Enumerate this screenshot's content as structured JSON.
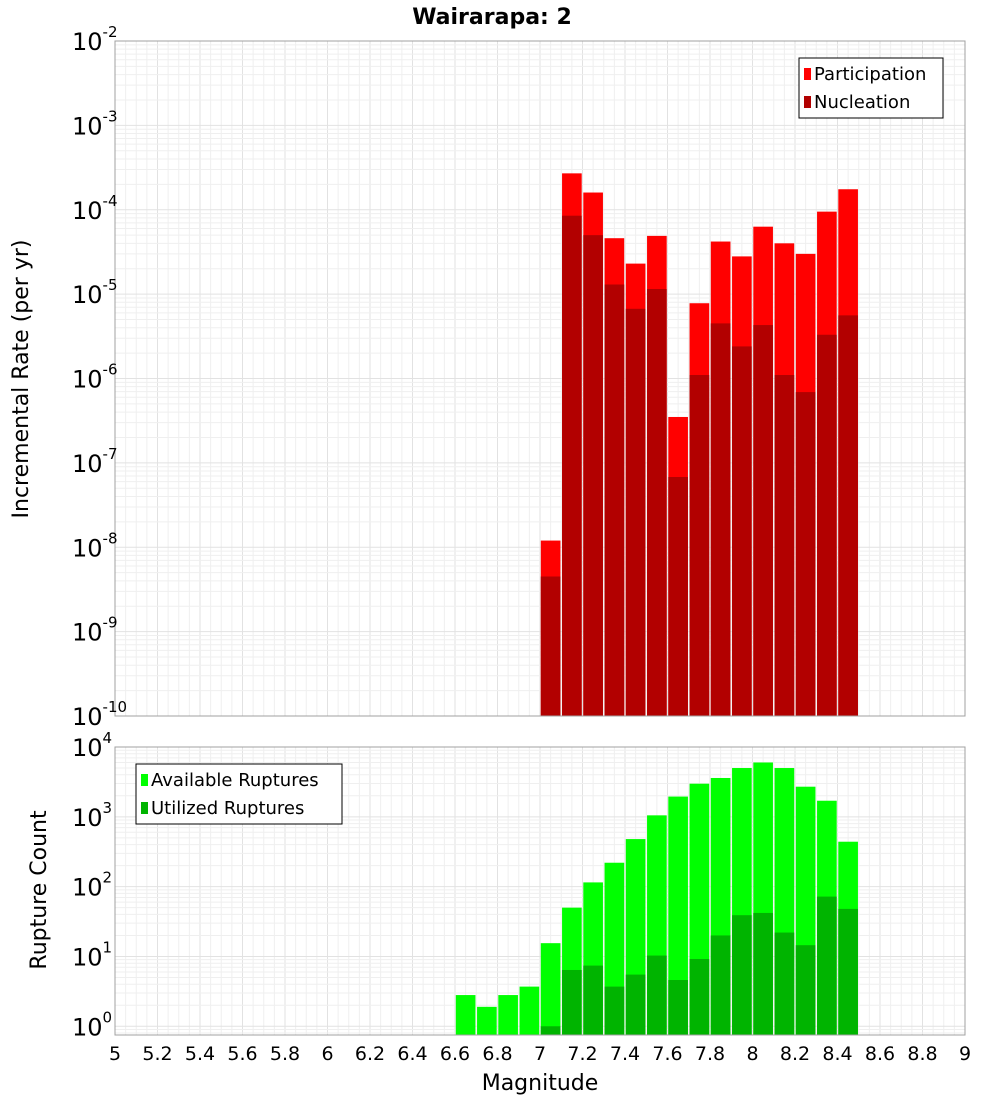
{
  "title": "Wairarapa: 2",
  "xlabel": "Magnitude",
  "x_ticks": [
    "5",
    "5.2",
    "5.4",
    "5.6",
    "5.8",
    "6",
    "6.2",
    "6.4",
    "6.6",
    "6.8",
    "7",
    "7.2",
    "7.4",
    "7.6",
    "7.8",
    "8",
    "8.2",
    "8.4",
    "8.6",
    "8.8",
    "9"
  ],
  "colors": {
    "participation": "#ff0000",
    "nucleation": "#b20000",
    "available": "#00ff00",
    "utilized": "#00b400"
  },
  "chart_data": [
    {
      "type": "bar",
      "ylabel": "Incremental Rate (per yr)",
      "xlim": [
        5,
        9
      ],
      "ylim": [
        1e-10,
        0.01
      ],
      "y_scale": "log",
      "y_tick_exponents": [
        "-10",
        "-9",
        "-8",
        "-7",
        "-6",
        "-5",
        "-4",
        "-3",
        "-2"
      ],
      "legend_position": "top-right",
      "x": [
        7.05,
        7.15,
        7.25,
        7.35,
        7.45,
        7.55,
        7.65,
        7.75,
        7.85,
        7.95,
        8.05,
        8.15,
        8.25,
        8.35,
        8.45
      ],
      "series": [
        {
          "name": "Participation",
          "values": [
            1.2e-08,
            0.00027,
            0.00016,
            4.6e-05,
            2.3e-05,
            4.9e-05,
            3.5e-07,
            7.8e-06,
            4.2e-05,
            2.8e-05,
            6.3e-05,
            4e-05,
            3e-05,
            9.5e-05,
            0.000175
          ]
        },
        {
          "name": "Nucleation",
          "values": [
            4.5e-09,
            8.5e-05,
            5e-05,
            1.3e-05,
            6.7e-06,
            1.15e-05,
            6.8e-08,
            1.1e-06,
            4.5e-06,
            2.4e-06,
            4.3e-06,
            1.1e-06,
            6.9e-07,
            3.3e-06,
            5.6e-06
          ]
        }
      ]
    },
    {
      "type": "bar",
      "ylabel": "Rupture Count",
      "xlim": [
        5,
        9
      ],
      "ylim": [
        0.75,
        10000
      ],
      "y_scale": "log",
      "y_tick_exponents": [
        "0",
        "1",
        "2",
        "3",
        "4"
      ],
      "legend_position": "top-left",
      "x": [
        6.65,
        6.75,
        6.85,
        6.95,
        7.05,
        7.15,
        7.25,
        7.35,
        7.45,
        7.55,
        7.65,
        7.75,
        7.85,
        7.95,
        8.05,
        8.15,
        8.25,
        8.35,
        8.45
      ],
      "series": [
        {
          "name": "Available Ruptures",
          "values": [
            2.8,
            1.9,
            2.8,
            3.7,
            15.5,
            50,
            115,
            220,
            480,
            1050,
            1950,
            2980,
            3600,
            5000,
            6000,
            5000,
            2700,
            1700,
            440
          ]
        },
        {
          "name": "Utilized Ruptures",
          "values": [
            0,
            0,
            0,
            0,
            1,
            6.4,
            7.4,
            3.7,
            5.5,
            10.3,
            4.6,
            9.2,
            20,
            39,
            42,
            22,
            14.5,
            72,
            48
          ]
        }
      ]
    }
  ]
}
